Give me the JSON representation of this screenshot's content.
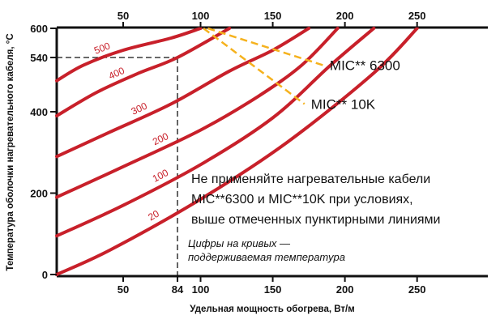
{
  "chart_data": {
    "type": "line",
    "xlabel": "Удельная мощность обогрева, Вт/м",
    "ylabel": "Температура оболочки нагревательного кабеля, °C",
    "x_ticks_bottom": [
      "50",
      "84",
      "100",
      "150",
      "200",
      "250"
    ],
    "x_ticks_top": [
      "50",
      "100",
      "150",
      "200",
      "250"
    ],
    "y_ticks": [
      "0",
      "200",
      "400",
      "540",
      "600"
    ],
    "xlim": [
      0,
      300
    ],
    "ylim": [
      0,
      600
    ],
    "y_scale_note": "non-linear: 0, 200, 400 evenly spaced; 540 and 600 compressed at the top",
    "series": [
      {
        "label": "500",
        "color": "#c8202a",
        "points": [
          [
            0,
            480
          ],
          [
            20,
            520
          ],
          [
            50,
            555
          ],
          [
            80,
            580
          ],
          [
            100,
            600
          ]
        ]
      },
      {
        "label": "400",
        "color": "#c8202a",
        "points": [
          [
            0,
            390
          ],
          [
            30,
            450
          ],
          [
            60,
            500
          ],
          [
            84,
            540
          ],
          [
            120,
            600
          ]
        ]
      },
      {
        "label": "300",
        "color": "#c8202a",
        "points": [
          [
            0,
            290
          ],
          [
            40,
            350
          ],
          [
            80,
            420
          ],
          [
            120,
            505
          ],
          [
            150,
            555
          ],
          [
            175,
            600
          ]
        ]
      },
      {
        "label": "200",
        "color": "#c8202a",
        "points": [
          [
            0,
            190
          ],
          [
            50,
            265
          ],
          [
            100,
            355
          ],
          [
            140,
            440
          ],
          [
            170,
            520
          ],
          [
            195,
            600
          ]
        ]
      },
      {
        "label": "100",
        "color": "#c8202a",
        "points": [
          [
            0,
            95
          ],
          [
            50,
            170
          ],
          [
            100,
            270
          ],
          [
            150,
            385
          ],
          [
            190,
            520
          ],
          [
            220,
            600
          ]
        ]
      },
      {
        "label": "20",
        "color": "#c8202a",
        "points": [
          [
            0,
            0
          ],
          [
            40,
            60
          ],
          [
            100,
            185
          ],
          [
            160,
            325
          ],
          [
            220,
            500
          ],
          [
            250,
            600
          ]
        ]
      }
    ],
    "limit_lines": [
      {
        "name": "MIC** 6300",
        "color": "#f5b21e",
        "style": "dashed",
        "points": [
          [
            105,
            600
          ],
          [
            185,
            520
          ]
        ]
      },
      {
        "name": "MIC** 10K",
        "color": "#f5b21e",
        "style": "dashed",
        "points": [
          [
            102,
            600
          ],
          [
            172,
            420
          ]
        ]
      }
    ],
    "reference_line": {
      "x": 84,
      "y": 540,
      "style": "dashed",
      "color": "#111111"
    },
    "warning_text": [
      "Не применяйте нагревательные кабели",
      "MIC**6300 и MIC**10K при условиях,",
      "выше отмеченных пунктирными линиями"
    ],
    "note_text": [
      "Цифры на кривых —",
      "поддерживаемая температура"
    ]
  }
}
